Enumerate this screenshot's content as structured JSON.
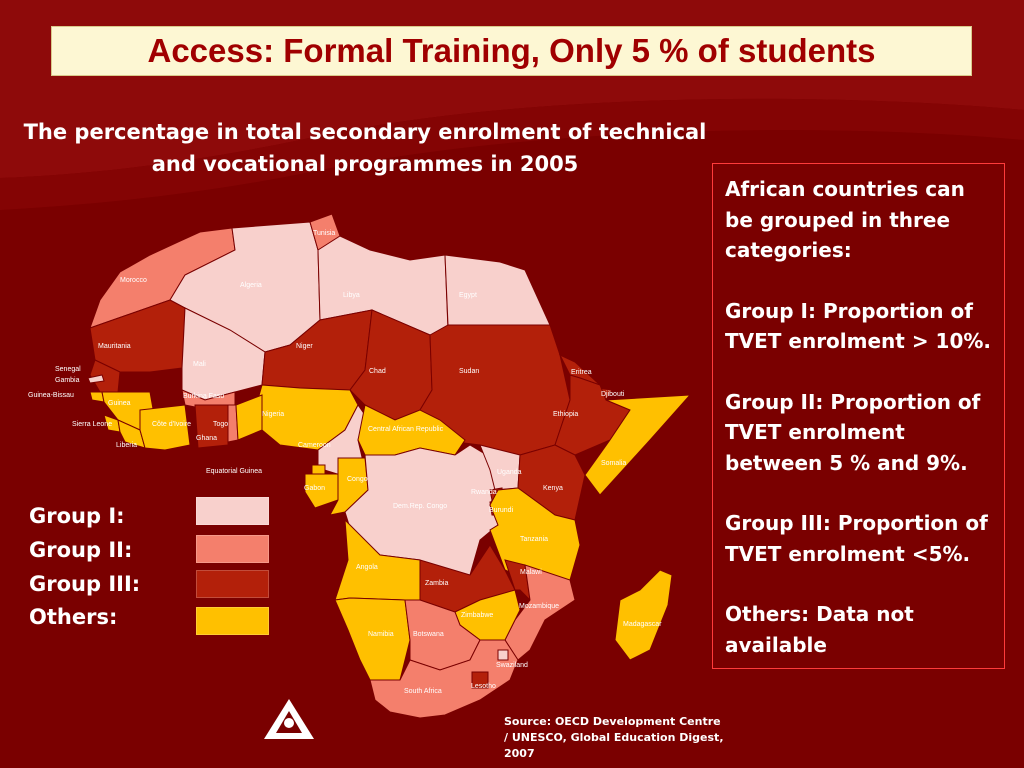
{
  "title": "Access:  Formal Training, Only 5 % of students",
  "subtitle": "The percentage in total secondary enrolment of technical and vocational programmes in 2005",
  "info_box": {
    "paragraphs": [
      "African countries can be grouped in three categories:",
      "Group I: Proportion of TVET enrolment > 10%.",
      "Group II: Proportion of TVET enrolment between 5 % and 9%.",
      "Group III: Proportion of TVET enrolment <5%.",
      "Others: Data not available"
    ]
  },
  "legend": [
    {
      "label": "Group I:",
      "color": "#f8d0cc"
    },
    {
      "label": "Group II:",
      "color": "#f47f6c"
    },
    {
      "label": "Group III:",
      "color": "#b3200a"
    },
    {
      "label": "Others:",
      "color": "#ffc000"
    }
  ],
  "countries": {
    "tunisia": "Tunisia",
    "morocco": "Morocco",
    "algeria": "Algeria",
    "libya": "Libya",
    "egypt": "Egypt",
    "mauritania": "Mauritania",
    "mali": "Mali",
    "niger": "Niger",
    "chad": "Chad",
    "sudan": "Sudan",
    "eritrea": "Eritrea",
    "djibouti": "Djibouti",
    "ethiopia": "Ethiopia",
    "somalia": "Somalia",
    "senegal": "Senegal",
    "gambia": "Gambia",
    "guinea_bissau": "Guinea-Bissau",
    "guinea": "Guinea",
    "sierra_leone": "Sierra Leone",
    "liberia": "Liberia",
    "cote_divoire": "Côte d'Ivoire",
    "burkina_faso": "Burkina Faso",
    "ghana": "Ghana",
    "togo": "Togo",
    "nigeria": "Nigeria",
    "cameroon": "Cameroon",
    "car": "Central African Republic",
    "equatorial_guinea": "Equatorial Guinea",
    "gabon": "Gabon",
    "congo": "Congo",
    "drc": "Dem.Rep. Congo",
    "uganda": "Uganda",
    "kenya": "Kenya",
    "rwanda": "Rwanda",
    "burundi": "Burundi",
    "tanzania": "Tanzania",
    "angola": "Angola",
    "zambia": "Zambia",
    "malawi": "Malawi",
    "mozambique": "Mozambique",
    "zimbabwe": "Zimbabwe",
    "madagascar": "Madagascar",
    "namibia": "Namibia",
    "botswana": "Botswana",
    "swaziland": "Swaziland",
    "lesotho": "Lesotho",
    "south_africa": "South Africa"
  },
  "source": "Source: OECD Development Centre / UNESCO, Global Education Digest, 2007",
  "colors": {
    "background": "#7a0000",
    "title_text": "#a00000",
    "title_bg": "#fdf7d3",
    "box_border": "#ff3b3b"
  }
}
